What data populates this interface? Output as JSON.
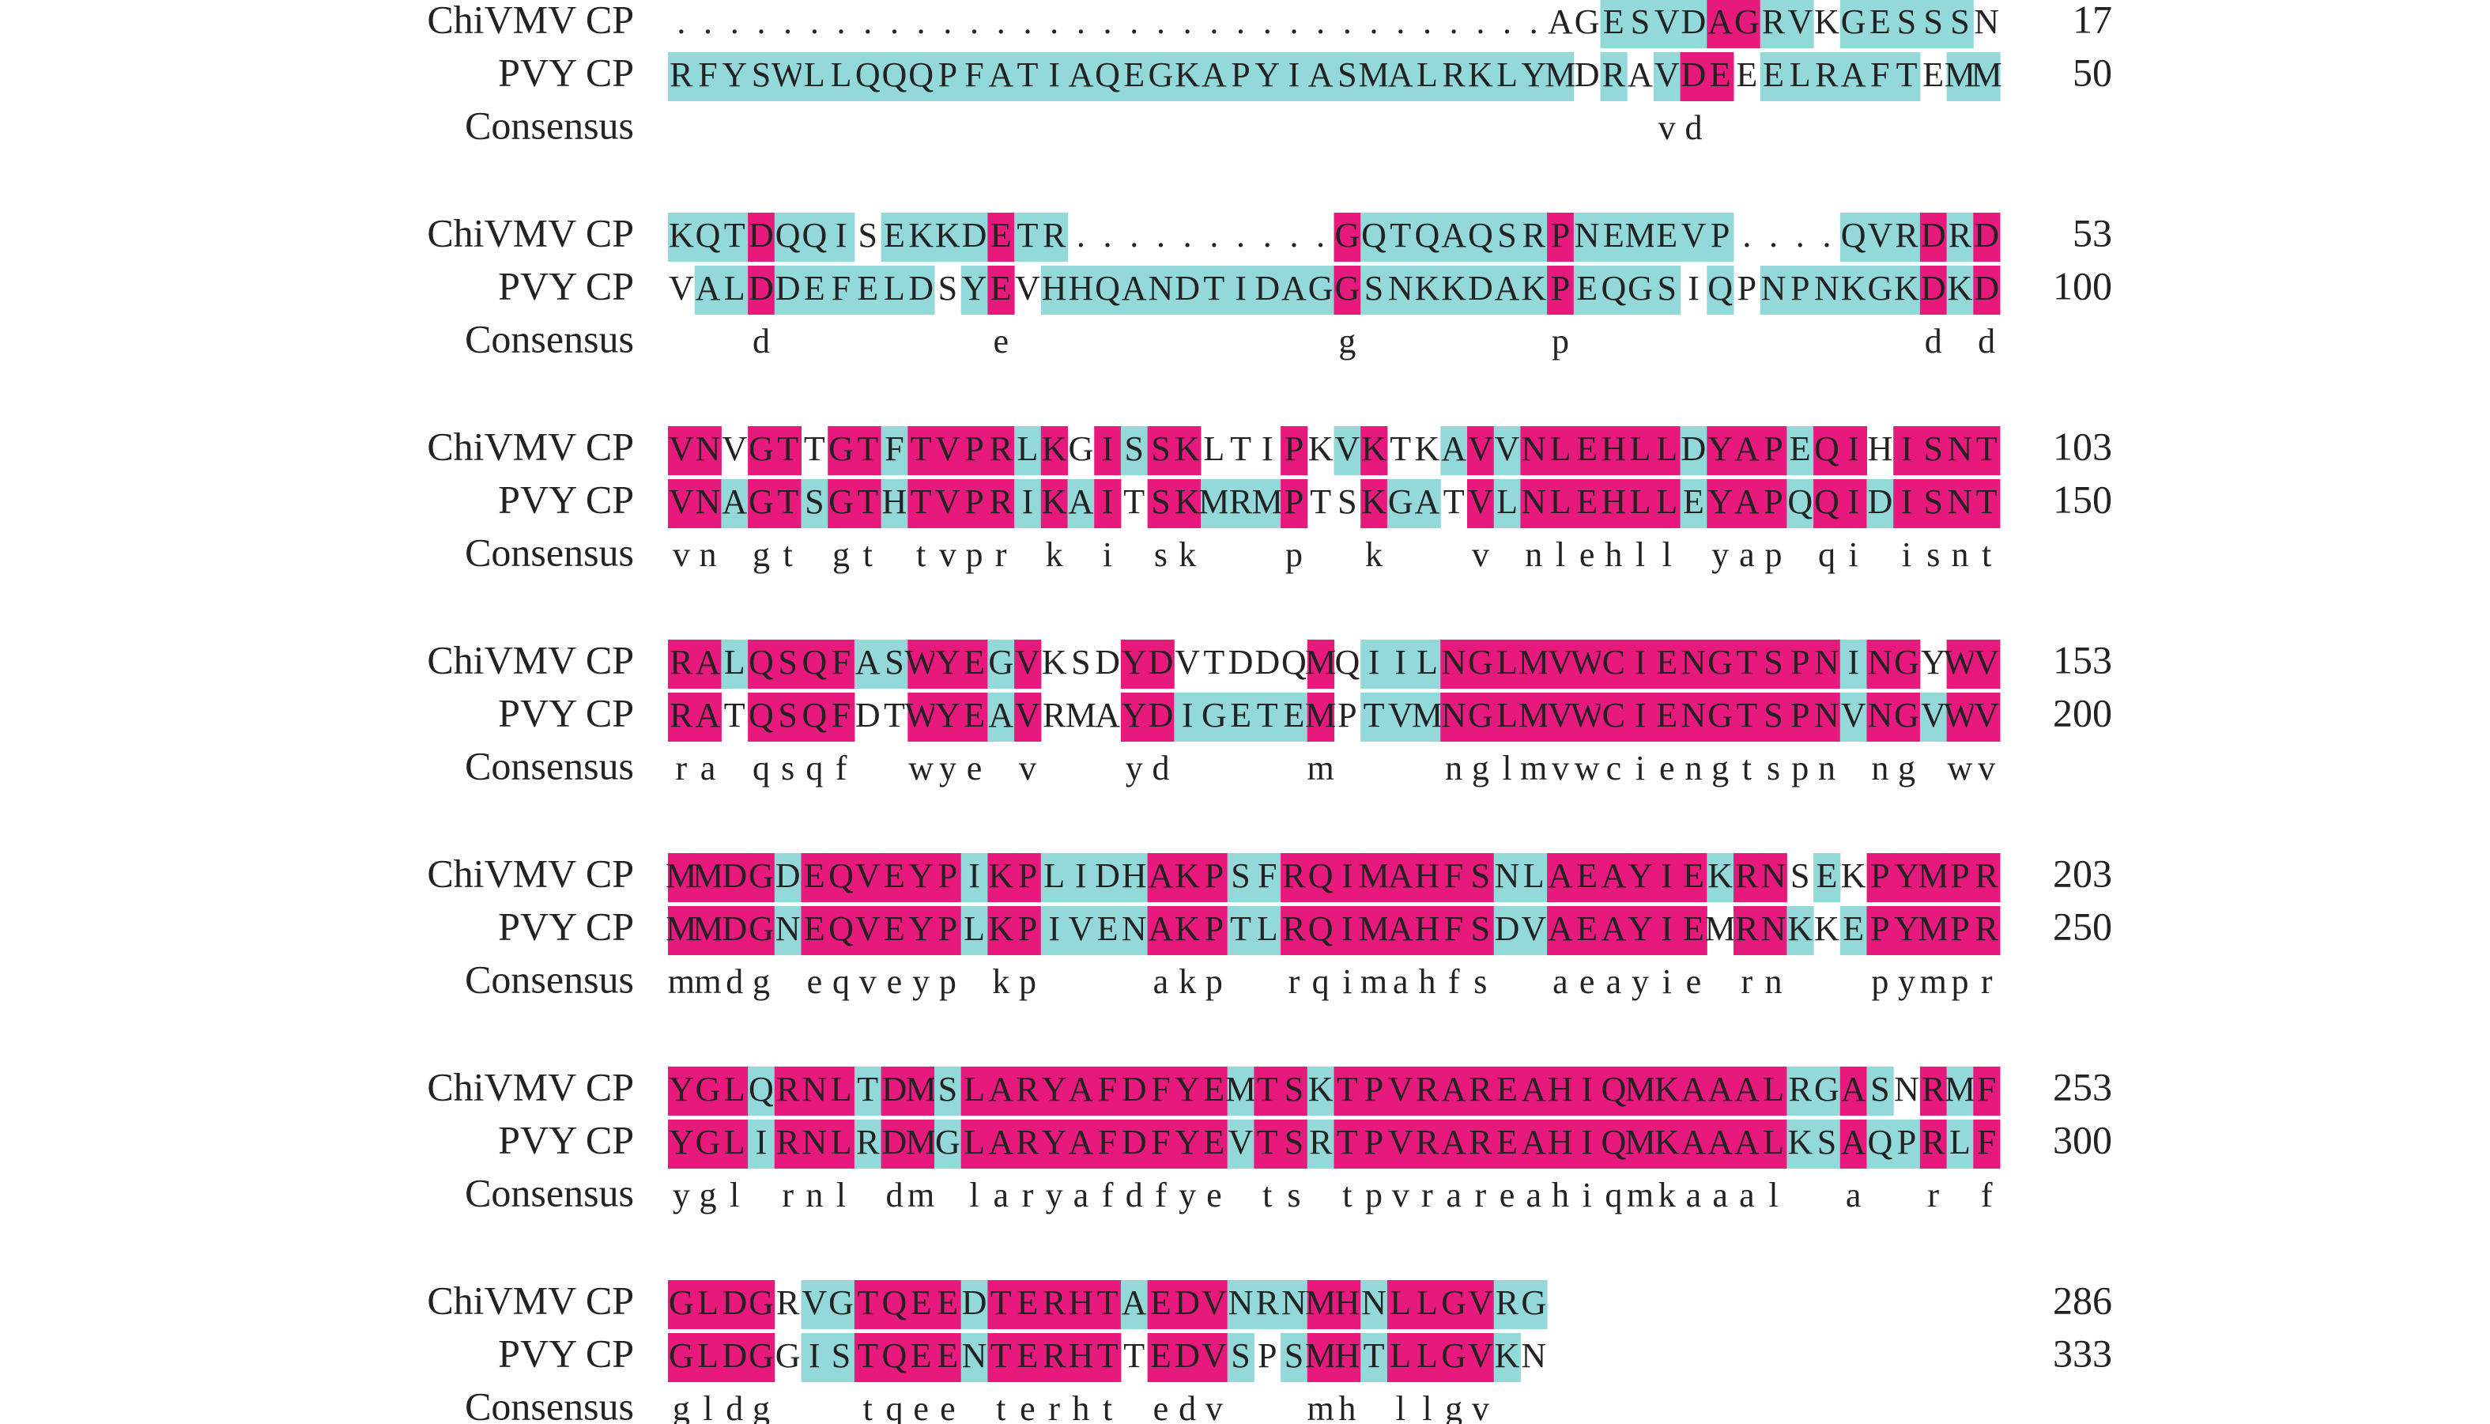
{
  "blocks": [
    {
      "rows": [
        {
          "name": "ChiVMV CP",
          "sequence": ".................................AGESVDAGRVKGESSSN",
          "end": 17,
          "shading": "-----------------------------------ccccmmcc-ccccc---"
        },
        {
          "name": "PVY CP",
          "sequence": "RFYSWLLQQQPFATIAQEGKAPYIASMALRKLYMDRAVDEEELRAFTEMM",
          "end": 50,
          "shading": "cccccccccccccccccccccccccccccccccc-c-cmm-cccccc-ccc"
        }
      ],
      "consensus_label": "Consensus",
      "consensus": "                                     vd"
    },
    {
      "rows": [
        {
          "name": "ChiVMV CP",
          "sequence": "KQTDQQISEKKDETR..........GQTQAQSRPNEMEVP....QVRDRD",
          "end": 53,
          "shading": "cccmccc-ccccmcc----------mcccccccmcccccc----cccmcm"
        },
        {
          "name": "PVY CP",
          "sequence": "VALDDEFELDSYEVHHQANDTIDAGGSNKKDAKPEQGSIQPNPNKGKDKD",
          "end": 100,
          "shading": "-ccmcccccc-cm-cccccccccccmcccccccmcccc-c-ccccccmcm"
        }
      ],
      "consensus_label": "Consensus",
      "consensus": "   d        e            g       p             d d"
    },
    {
      "rows": [
        {
          "name": "ChiVMV CP",
          "sequence": "VNVGTTGTFTVPRLKGISSKLTIPKVKTKAVVNLEHLLDYAPEQIHISNT",
          "end": 103,
          "shading": "mm-mm-mmcmmmmcm-mcmm---m-cm--cmcmmmmmmcmmmcmm-mmmm"
        },
        {
          "name": "PVY CP",
          "sequence": "VNAGTSGTHTVPRIKAITSKMRMPTSKGATVLNLEHLLEYAPQQIDISNT",
          "end": 150,
          "shading": "mmcmmcmmcmmmmcmcm-mmcccm--mcc-mcmmmmmmcmmmcmmcmmmm"
        }
      ],
      "consensus_label": "Consensus",
      "consensus": "vn gt gt tvpr k i sk   p  k   v nlehll yap qi isnt"
    },
    {
      "rows": [
        {
          "name": "ChiVMV CP",
          "sequence": "RALQSQFASWYEGVKSDYDVTDDQMQIILNGLMVWCIENGTSPNINGYWV",
          "end": 153,
          "shading": "mmcmmmmccmmmcm---mm-----m-cccmmmmmmmmmmmmmmmcmm-mm"
        },
        {
          "name": "PVY CP",
          "sequence": "RATQSQFDTWYEAVRMAYDIGETEMPTVMNGLMVWCIENGTSPNVNGVWV",
          "end": 200,
          "shading": "mm-mmmm--mmmcm---mmcccccm-cccmmmmmmmmmmmmmmmcmmcmm"
        }
      ],
      "consensus_label": "Consensus",
      "consensus": "ra qsqf  wye v   yd     m    nglmvwciengtspn ng wv"
    },
    {
      "rows": [
        {
          "name": "ChiVMV CP",
          "sequence": "MMDGDEQVEYPIKPLIDHAKPSFRQIMAHFSNLAEAYIEKRNSEKPYMPR",
          "end": 203,
          "shading": "mmmmcmmmmmmcmmccccmmmccmmmmmmmmccmmmmmmcmm-c-mmmmm"
        },
        {
          "name": "PVY CP",
          "sequence": "MMDGNEQVEYPLKPIVENAKPTLRQIMAHFSDVAEAYIEMRNKKEPYMPR",
          "end": 250,
          "shading": "mmmmcmmmmmmcmmccccmmmccmmmmmmmmccmmmmmm-mmc-cmmmmm"
        }
      ],
      "consensus_label": "Consensus",
      "consensus": "mmdg eqveyp kp    akp  rqimahfs  aeayie rn   pympr"
    },
    {
      "rows": [
        {
          "name": "ChiVMV CP",
          "sequence": "YGLQRNLTDMSLARYAFDFYEMTSKTPVRAREAHIQMKAAALRGASNRMF",
          "end": 253,
          "shading": "mmmcmmmcmmcmmmmmmmmmmcmmcmmmmmmmmmmmmmmmmmccmc-mcm"
        },
        {
          "name": "PVY CP",
          "sequence": "YGLIRNLRDMGLARYAFDFYEVTSRTPVRAREAHIQMKAAALKSAQPRLF",
          "end": 300,
          "shading": "mmmcmmmcmmcmmmmmmmmmmcmmcmmmmmmmmmmmmmmmmmccmccmcm"
        }
      ],
      "consensus_label": "Consensus",
      "consensus": "ygl rnl dm laryafdfye ts tpvrareahiqmkaaal  a  r f"
    },
    {
      "rows": [
        {
          "name": "ChiVMV CP",
          "sequence": "GLDGRVGTQEEDTERHTAEDVNRNMHNLLGVRG",
          "end": 286,
          "shading": "mmmm-ccmmmmcmmmmmcmmmcccmmcmmmmcc"
        },
        {
          "name": "PVY CP",
          "sequence": "GLDGGISTQEENTERHTTEDVSPSMHTLLGVKN",
          "end": 333,
          "shading": "mmmm-ccmmmmcmmmmm-mmmc-cmmcmmmmc-"
        }
      ],
      "consensus_label": "Consensus",
      "consensus": "gldg   tqee terht edv   mh llgv"
    }
  ]
}
